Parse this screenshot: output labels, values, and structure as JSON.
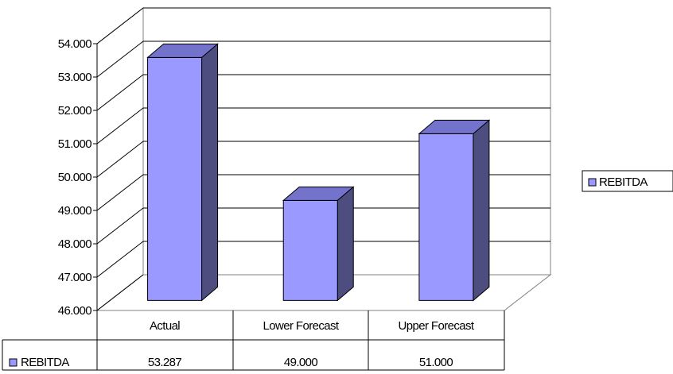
{
  "chart_data": {
    "type": "bar",
    "style": "3d-column",
    "categories": [
      "Actual",
      "Lower Forecast",
      "Upper Forecast"
    ],
    "series": [
      {
        "name": "REBITDA",
        "values": [
          53.287,
          49.0,
          51.0
        ],
        "display_values": [
          "53.287",
          "49.000",
          "51.000"
        ],
        "color": "#9999ff"
      }
    ],
    "y_ticks": [
      "46.000",
      "47.000",
      "48.000",
      "49.000",
      "50.000",
      "51.000",
      "52.000",
      "53.000",
      "54.000"
    ],
    "ylim": [
      46,
      54
    ],
    "grid": true,
    "legend": {
      "position": "right",
      "label": "REBITDA"
    },
    "data_table": true
  },
  "colors": {
    "bar_front": "#9999ff",
    "bar_side": "#4d4d80",
    "bar_top": "#7373cc",
    "grid": "#000000",
    "floor": "#ffffff"
  }
}
